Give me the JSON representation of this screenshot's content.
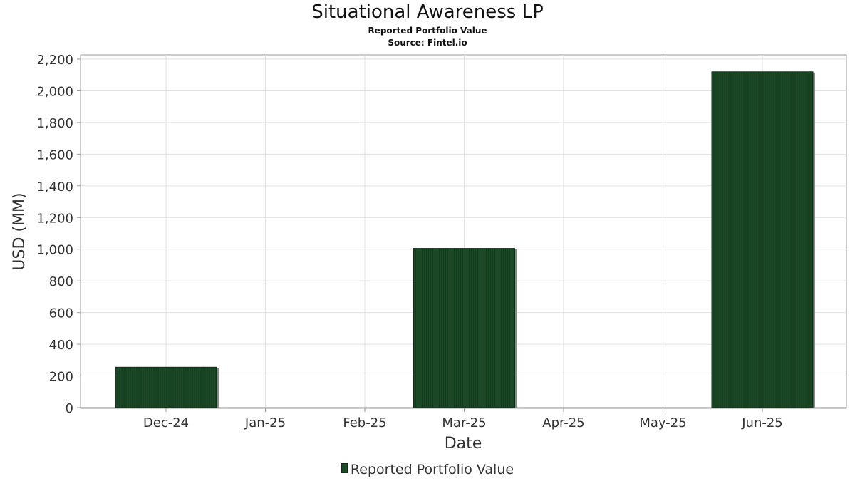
{
  "chart_data": {
    "type": "bar",
    "title": "Situational Awareness LP",
    "subtitle": "Reported Portfolio Value",
    "source": "Source: Fintel.io",
    "xlabel": "Date",
    "ylabel": "USD (MM)",
    "ylim": [
      0,
      2200
    ],
    "y_ticks": [
      0,
      200,
      400,
      600,
      800,
      1000,
      1200,
      1400,
      1600,
      1800,
      2000,
      2200
    ],
    "x_ticks": [
      "Dec-24",
      "Jan-25",
      "Feb-25",
      "Mar-25",
      "Apr-25",
      "May-25",
      "Jun-25"
    ],
    "grid": true,
    "legend_position": "bottom-center",
    "series": [
      {
        "name": "Reported Portfolio Value",
        "color": "#1b4a26",
        "points": [
          {
            "date": "Dec-24",
            "value": 255
          },
          {
            "date": "Mar-25",
            "value": 1005
          },
          {
            "date": "Jun-25",
            "value": 2120
          }
        ]
      }
    ]
  }
}
